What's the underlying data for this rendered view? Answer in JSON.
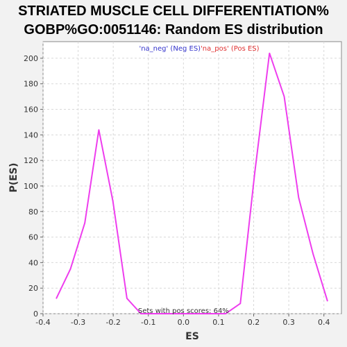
{
  "chart_data": {
    "type": "line",
    "title_line1": "STRIATED MUSCLE CELL DIFFERENTIATION%",
    "title_line2": "GOBP%GO:0051146: Random ES distribution",
    "xlabel": "ES",
    "ylabel": "P(ES)",
    "xlim": [
      -0.4,
      0.45
    ],
    "ylim": [
      0,
      213
    ],
    "xticks": [
      -0.4,
      -0.3,
      -0.2,
      -0.1,
      0.0,
      0.1,
      0.2,
      0.3,
      0.4
    ],
    "xtick_labels": [
      "-0.4",
      "-0.3",
      "-0.2",
      "-0.1",
      "0.0",
      "0.1",
      "0.2",
      "0.3",
      "0.4"
    ],
    "yticks": [
      0,
      20,
      40,
      60,
      80,
      100,
      120,
      140,
      160,
      180,
      200
    ],
    "ytick_labels": [
      "0",
      "20",
      "40",
      "60",
      "80",
      "100",
      "120",
      "140",
      "160",
      "180",
      "200"
    ],
    "grid": true,
    "series": [
      {
        "name": "Random ES",
        "color": "#ee3dee",
        "x": [
          -0.362,
          -0.322,
          -0.281,
          -0.241,
          -0.201,
          -0.161,
          -0.121,
          -0.081,
          -0.041,
          0.0,
          0.04,
          0.08,
          0.12,
          0.162,
          0.203,
          0.245,
          0.287,
          0.328,
          0.369,
          0.41
        ],
        "y": [
          12,
          35,
          71,
          144,
          88,
          12,
          0,
          0,
          0,
          0,
          0,
          0,
          0,
          8,
          110,
          204,
          170,
          91,
          47,
          10
        ]
      }
    ],
    "legend": {
      "placement": "top-center",
      "neg_label": "'na_neg' (Neg ES)",
      "pos_label": "'na_pos' (Pos ES)",
      "neg_color": "#3333cc",
      "pos_color": "#e03030"
    },
    "annotation": "Sets with pos scores: 64%"
  }
}
